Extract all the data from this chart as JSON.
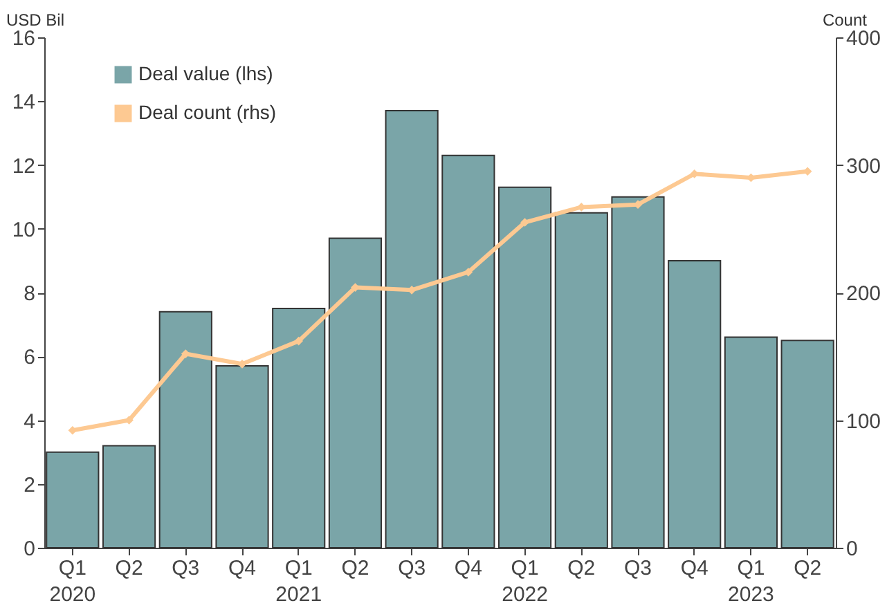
{
  "chart_data": {
    "type": "bar",
    "xlabel": null,
    "ylabel": "USD Bil",
    "y2label": "Count",
    "categories": [
      "Q1\n2020",
      "Q2",
      "Q3",
      "Q4",
      "Q1\n2021",
      "Q2",
      "Q3",
      "Q4",
      "Q1\n2022",
      "Q2",
      "Q3",
      "Q4",
      "Q1\n2023",
      "Q2"
    ],
    "series": [
      {
        "name": "Deal value (lhs)",
        "type": "bar",
        "color": "#7aa5a8",
        "values": [
          3.0,
          3.2,
          7.4,
          5.7,
          7.5,
          9.7,
          13.7,
          12.3,
          11.3,
          10.5,
          11.0,
          9.0,
          6.6,
          6.5
        ]
      },
      {
        "name": "Deal count (rhs)",
        "type": "line",
        "axis": "y2",
        "color": "#fdc992",
        "marker": "diamond",
        "values": [
          92,
          100,
          152,
          144,
          162,
          204,
          202,
          216,
          255,
          267,
          269,
          293,
          290,
          295
        ]
      }
    ],
    "ylim": [
      0,
      16
    ],
    "yticks": [
      0,
      2,
      4,
      6,
      8,
      10,
      12,
      14,
      16
    ],
    "y2lim": [
      0,
      400
    ],
    "y2ticks": [
      0,
      100,
      200,
      300,
      400
    ],
    "grid": false,
    "legend": "top left"
  }
}
